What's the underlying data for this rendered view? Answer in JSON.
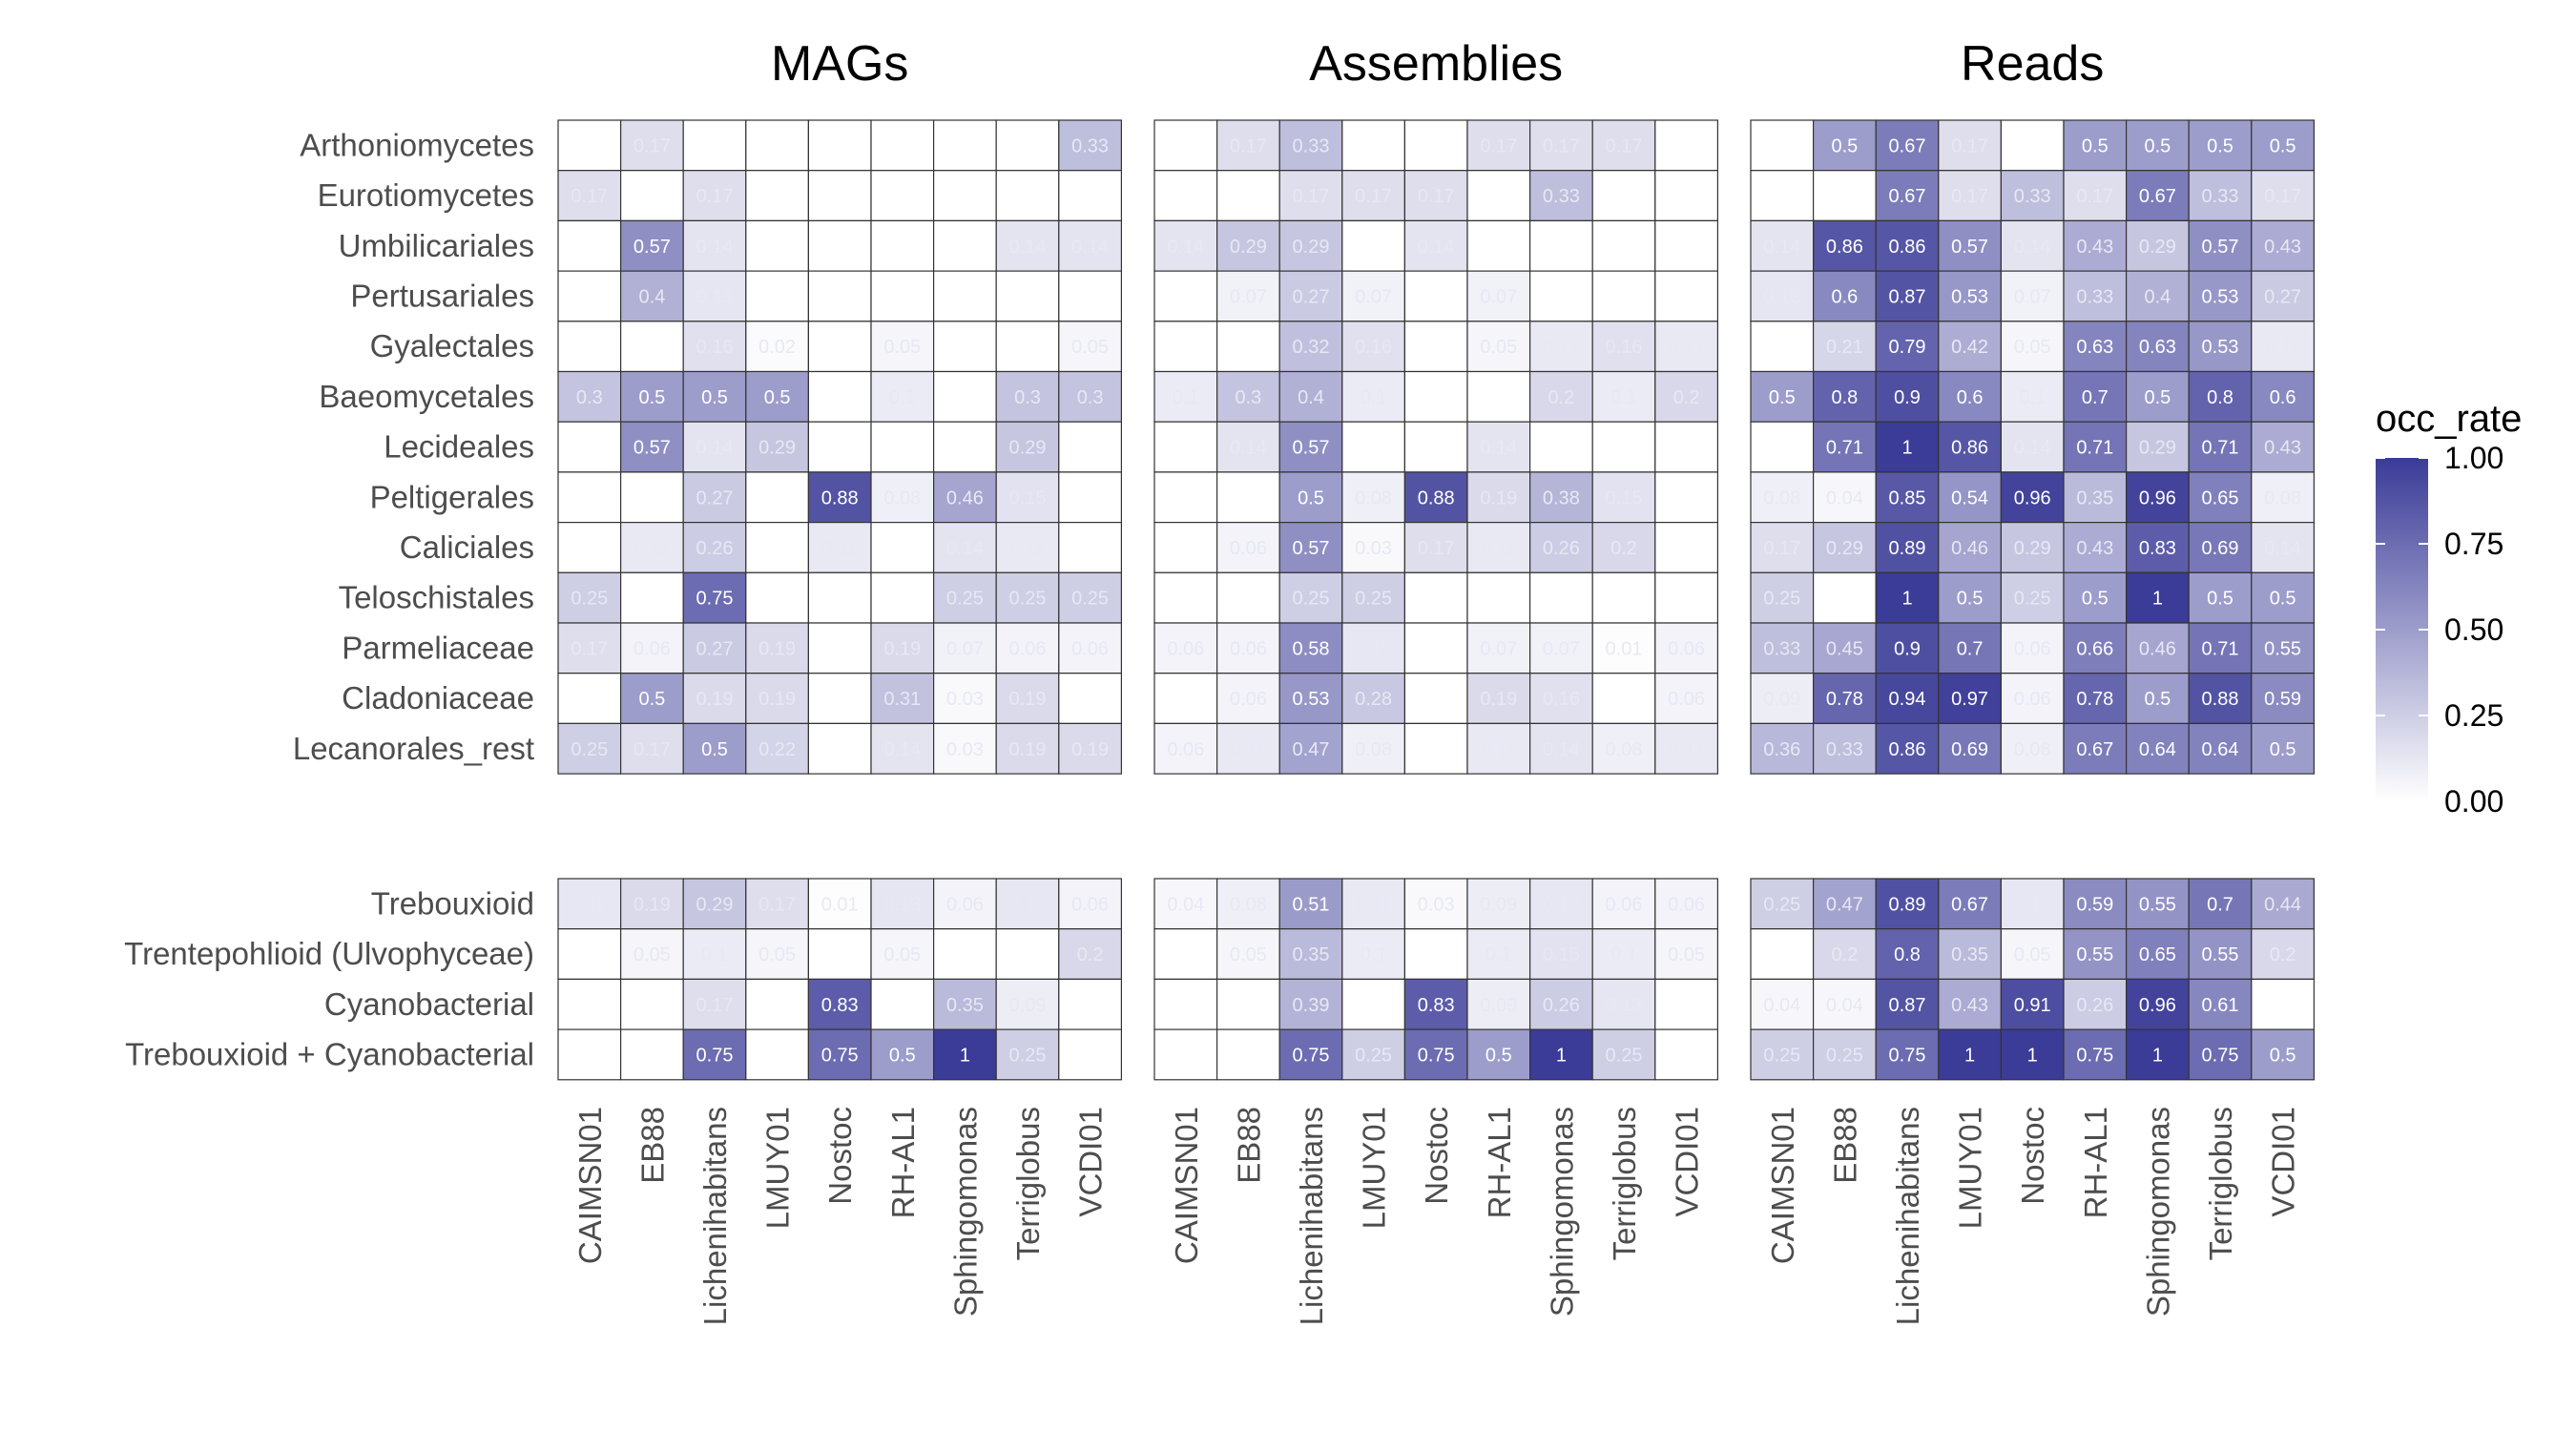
{
  "chart_data": {
    "type": "heatmap",
    "panels": [
      "MAGs",
      "Assemblies",
      "Reads"
    ],
    "columns": [
      "CAIMSN01",
      "EB88",
      "Lichenihabitans",
      "LMUY01",
      "Nostoc",
      "RH-AL1",
      "Sphingomonas",
      "Terriglobus",
      "VCDI01"
    ],
    "row_groups": [
      {
        "rows": [
          "Arthoniomycetes",
          "Eurotiomycetes",
          "Umbilicariales",
          "Pertusariales",
          "Gyalectales",
          "Baeomycetales",
          "Lecideales",
          "Peltigerales",
          "Caliciales",
          "Teloschistales",
          "Parmeliaceae",
          "Cladoniaceae",
          "Lecanorales_rest"
        ],
        "values": {
          "MAGs": [
            [
              null,
              0.17,
              null,
              null,
              null,
              null,
              null,
              null,
              0.33
            ],
            [
              0.17,
              null,
              0.17,
              null,
              null,
              null,
              null,
              null,
              null
            ],
            [
              null,
              0.57,
              0.14,
              null,
              null,
              null,
              null,
              0.14,
              0.14
            ],
            [
              null,
              0.4,
              0.13,
              null,
              null,
              null,
              null,
              null,
              null
            ],
            [
              null,
              null,
              0.16,
              0.02,
              null,
              0.05,
              null,
              null,
              0.05
            ],
            [
              0.3,
              0.5,
              0.5,
              0.5,
              null,
              0.1,
              null,
              0.3,
              0.3
            ],
            [
              null,
              0.57,
              0.14,
              0.29,
              null,
              null,
              null,
              0.29,
              null
            ],
            [
              null,
              null,
              0.27,
              null,
              0.88,
              0.08,
              0.46,
              0.15,
              null
            ],
            [
              null,
              0.11,
              0.26,
              null,
              0.11,
              null,
              0.14,
              0.11,
              null
            ],
            [
              0.25,
              null,
              0.75,
              null,
              null,
              null,
              0.25,
              0.25,
              0.25
            ],
            [
              0.17,
              0.06,
              0.27,
              0.19,
              null,
              0.19,
              0.07,
              0.06,
              0.06
            ],
            [
              null,
              0.5,
              0.19,
              0.19,
              null,
              0.31,
              0.03,
              0.19,
              null
            ],
            [
              0.25,
              0.17,
              0.5,
              0.22,
              null,
              0.14,
              0.03,
              0.19,
              0.19
            ]
          ],
          "Assemblies": [
            [
              null,
              0.17,
              0.33,
              null,
              null,
              0.17,
              0.17,
              0.17,
              null
            ],
            [
              null,
              null,
              0.17,
              0.17,
              0.17,
              null,
              0.33,
              null,
              null
            ],
            [
              0.14,
              0.29,
              0.29,
              null,
              0.14,
              null,
              null,
              null,
              null
            ],
            [
              null,
              0.07,
              0.27,
              0.07,
              null,
              0.07,
              null,
              null,
              null
            ],
            [
              null,
              null,
              0.32,
              0.16,
              null,
              0.05,
              0.11,
              0.16,
              0.11
            ],
            [
              0.1,
              0.3,
              0.4,
              0.1,
              null,
              null,
              0.2,
              0.1,
              0.2
            ],
            [
              null,
              0.14,
              0.57,
              null,
              null,
              0.14,
              null,
              null,
              null
            ],
            [
              null,
              null,
              0.5,
              0.08,
              0.88,
              0.19,
              0.38,
              0.15,
              null
            ],
            [
              null,
              0.06,
              0.57,
              0.03,
              0.17,
              0.11,
              0.26,
              0.2,
              null
            ],
            [
              null,
              null,
              0.25,
              0.25,
              null,
              null,
              null,
              null,
              null
            ],
            [
              0.06,
              0.06,
              0.58,
              0.12,
              null,
              0.07,
              0.07,
              0.01,
              0.06
            ],
            [
              null,
              0.06,
              0.53,
              0.28,
              null,
              0.19,
              0.16,
              null,
              0.06
            ],
            [
              0.06,
              0.11,
              0.47,
              0.08,
              null,
              0.11,
              0.14,
              0.08,
              0.11
            ]
          ],
          "Reads": [
            [
              null,
              0.5,
              0.67,
              0.17,
              null,
              0.5,
              0.5,
              0.5,
              0.5
            ],
            [
              null,
              null,
              0.67,
              0.17,
              0.33,
              0.17,
              0.67,
              0.33,
              0.17
            ],
            [
              0.14,
              0.86,
              0.86,
              0.57,
              0.14,
              0.43,
              0.29,
              0.57,
              0.43
            ],
            [
              0.13,
              0.6,
              0.87,
              0.53,
              0.07,
              0.33,
              0.4,
              0.53,
              0.27
            ],
            [
              null,
              0.21,
              0.79,
              0.42,
              0.05,
              0.63,
              0.63,
              0.53,
              0.11
            ],
            [
              0.5,
              0.8,
              0.9,
              0.6,
              0.1,
              0.7,
              0.5,
              0.8,
              0.6
            ],
            [
              null,
              0.71,
              1,
              0.86,
              0.14,
              0.71,
              0.29,
              0.71,
              0.43
            ],
            [
              0.08,
              0.04,
              0.85,
              0.54,
              0.96,
              0.35,
              0.96,
              0.65,
              0.08
            ],
            [
              0.17,
              0.29,
              0.89,
              0.46,
              0.29,
              0.43,
              0.83,
              0.69,
              0.14
            ],
            [
              0.25,
              null,
              1,
              0.5,
              0.25,
              0.5,
              1,
              0.5,
              0.5
            ],
            [
              0.33,
              0.45,
              0.9,
              0.7,
              0.06,
              0.66,
              0.46,
              0.71,
              0.55
            ],
            [
              0.09,
              0.78,
              0.94,
              0.97,
              0.06,
              0.78,
              0.5,
              0.88,
              0.59
            ],
            [
              0.36,
              0.33,
              0.86,
              0.69,
              0.08,
              0.67,
              0.64,
              0.64,
              0.5
            ]
          ]
        }
      },
      {
        "rows": [
          "Trebouxioid",
          "Trentepohlioid (Ulvophyceae)",
          "Cyanobacterial",
          "Trebouxioid + Cyanobacterial"
        ],
        "values": {
          "MAGs": [
            [
              0.12,
              0.19,
              0.29,
              0.17,
              0.01,
              0.13,
              0.06,
              0.12,
              0.06
            ],
            [
              null,
              0.05,
              0.1,
              0.05,
              null,
              0.05,
              null,
              null,
              0.2
            ],
            [
              null,
              null,
              0.17,
              null,
              0.83,
              null,
              0.35,
              0.09,
              null
            ],
            [
              null,
              null,
              0.75,
              null,
              0.75,
              0.5,
              1,
              0.25,
              null
            ]
          ],
          "Assemblies": [
            [
              0.04,
              0.08,
              0.51,
              0.11,
              0.03,
              0.09,
              0.12,
              0.06,
              0.06
            ],
            [
              null,
              0.05,
              0.35,
              0.1,
              null,
              0.1,
              0.15,
              0.1,
              0.05
            ],
            [
              null,
              null,
              0.39,
              null,
              0.83,
              0.09,
              0.26,
              0.13,
              null
            ],
            [
              null,
              null,
              0.75,
              0.25,
              0.75,
              0.5,
              1,
              0.25,
              null
            ]
          ],
          "Reads": [
            [
              0.25,
              0.47,
              0.89,
              0.67,
              0.12,
              0.59,
              0.55,
              0.7,
              0.44
            ],
            [
              null,
              0.2,
              0.8,
              0.35,
              0.05,
              0.55,
              0.65,
              0.55,
              0.2
            ],
            [
              0.04,
              0.04,
              0.87,
              0.43,
              0.91,
              0.26,
              0.96,
              0.61,
              null
            ],
            [
              0.25,
              0.25,
              0.75,
              1,
              1,
              0.75,
              1,
              0.75,
              0.5
            ]
          ]
        }
      }
    ],
    "legend": {
      "title": "occ_rate",
      "ticks": [
        "0.00",
        "0.25",
        "0.50",
        "0.75",
        "1.00"
      ],
      "range": [
        0,
        1
      ],
      "placement": "right"
    },
    "colors": {
      "low": "#ffffff",
      "high": "#3b3b98",
      "grid": "#333333"
    }
  }
}
